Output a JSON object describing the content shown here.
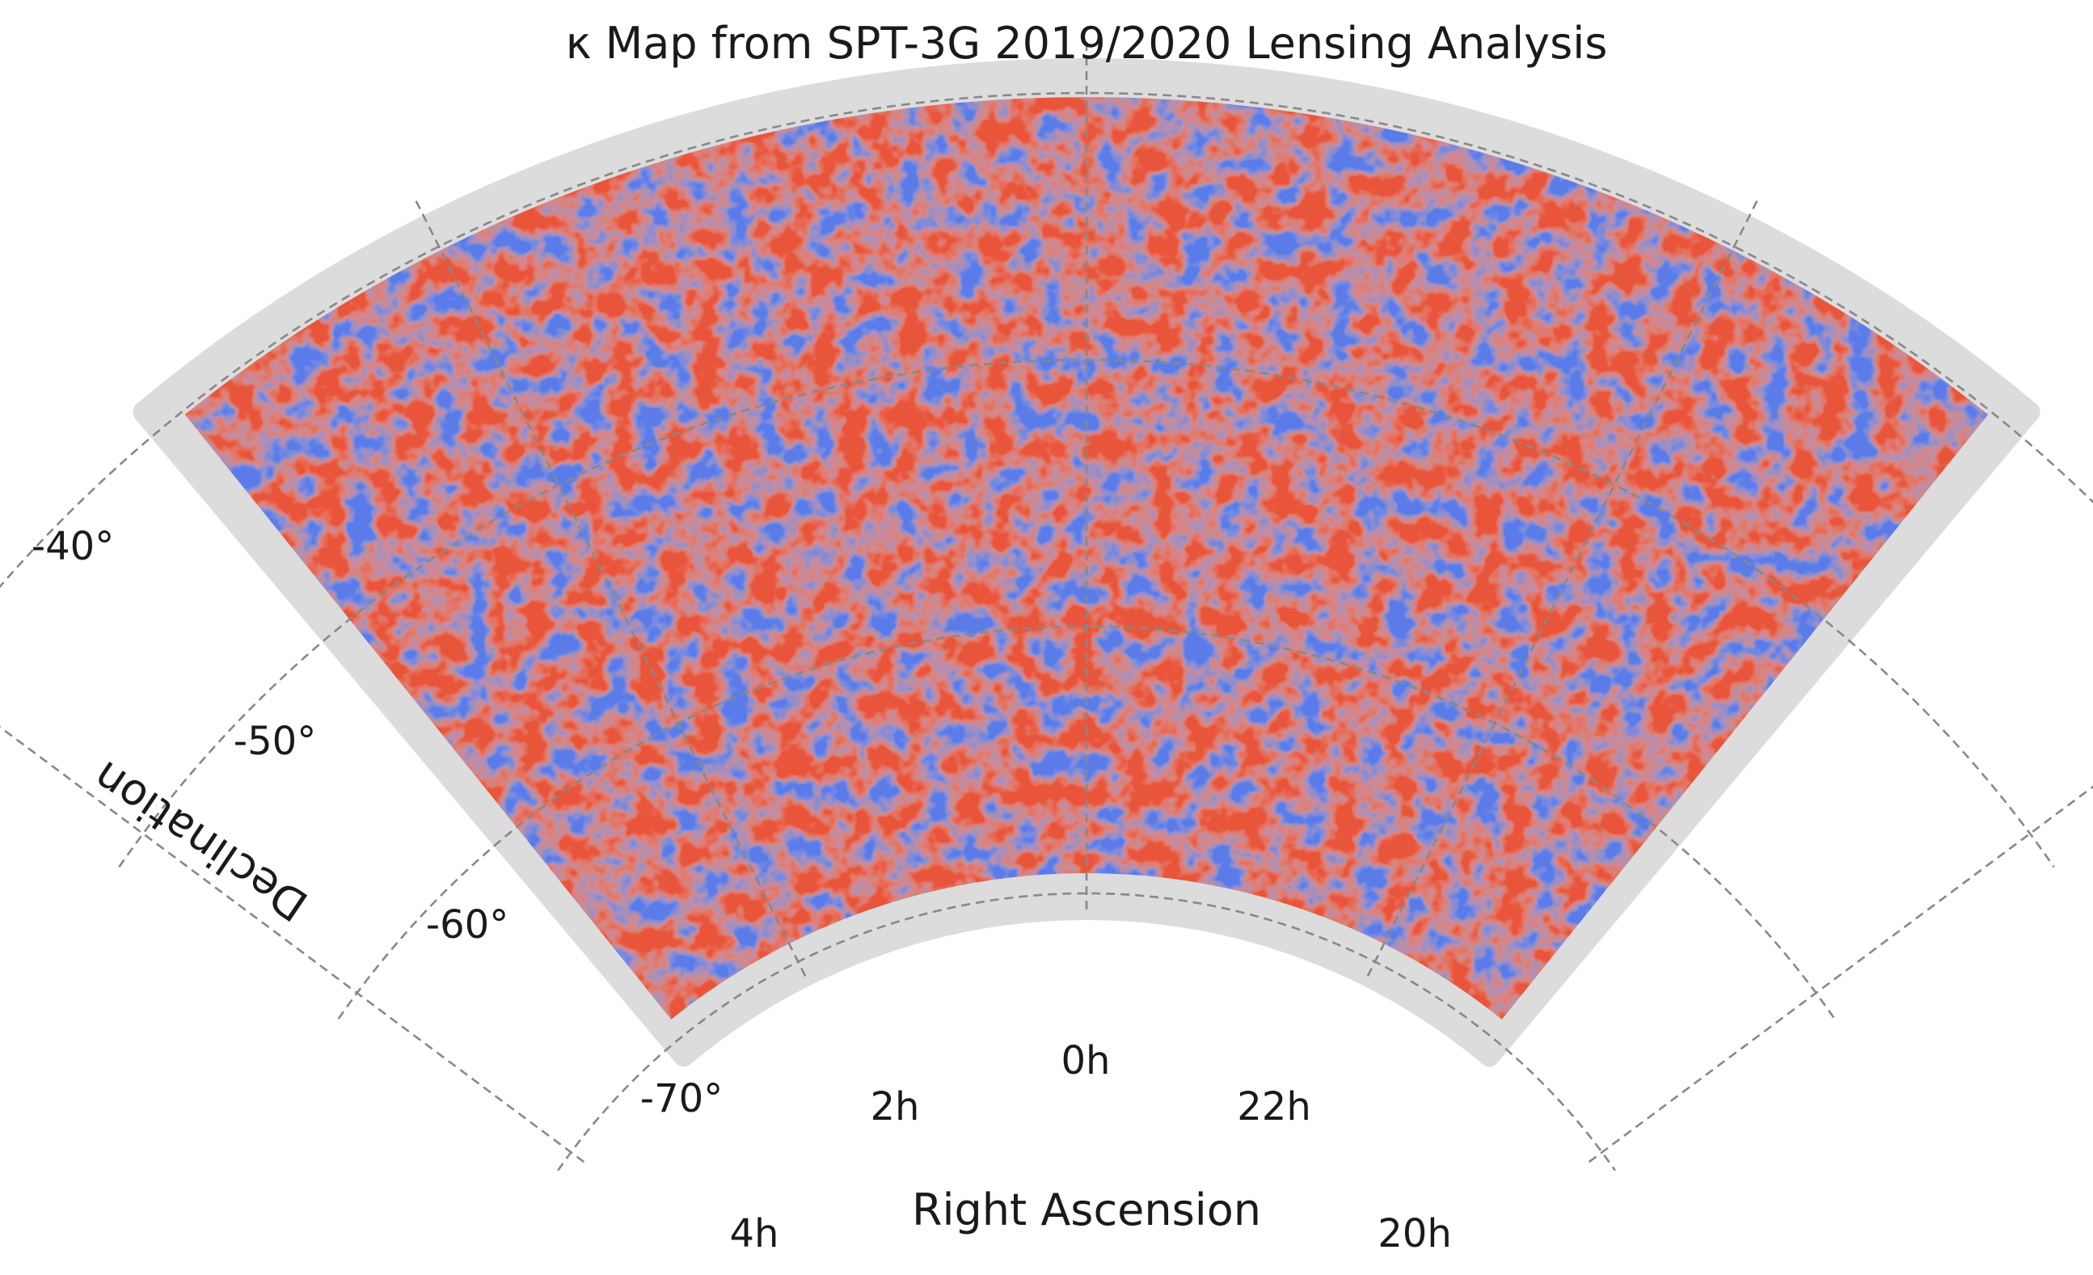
{
  "chart_data": {
    "type": "heatmap",
    "title": "κ Map from SPT-3G 2019/2020 Lensing Analysis",
    "xlabel": "Right Ascension",
    "ylabel": "Declination",
    "projection": "conic",
    "grid": true,
    "colormap": "coolwarm",
    "colors": {
      "negative": "#3b4cc0",
      "neutral": "#dddddd",
      "positive": "#b40426",
      "footprint": "#dcdcdc",
      "grid": "#888888"
    },
    "ra_range_hours": [
      20.0,
      4.0
    ],
    "dec_range_deg": [
      -70,
      -40
    ],
    "footprint": {
      "ra_range_hours": [
        21.0,
        3.0
      ],
      "dec_range_deg": [
        -70,
        -40
      ]
    },
    "ra_ticks": [
      {
        "value": 4,
        "label": "4h"
      },
      {
        "value": 2,
        "label": "2h"
      },
      {
        "value": 0,
        "label": "0h"
      },
      {
        "value": 22,
        "label": "22h"
      },
      {
        "value": 20,
        "label": "20h"
      }
    ],
    "dec_ticks": [
      {
        "value": -40,
        "label": "-40°"
      },
      {
        "value": -50,
        "label": "-50°"
      },
      {
        "value": -60,
        "label": "-60°"
      },
      {
        "value": -70,
        "label": "-70°"
      }
    ]
  }
}
